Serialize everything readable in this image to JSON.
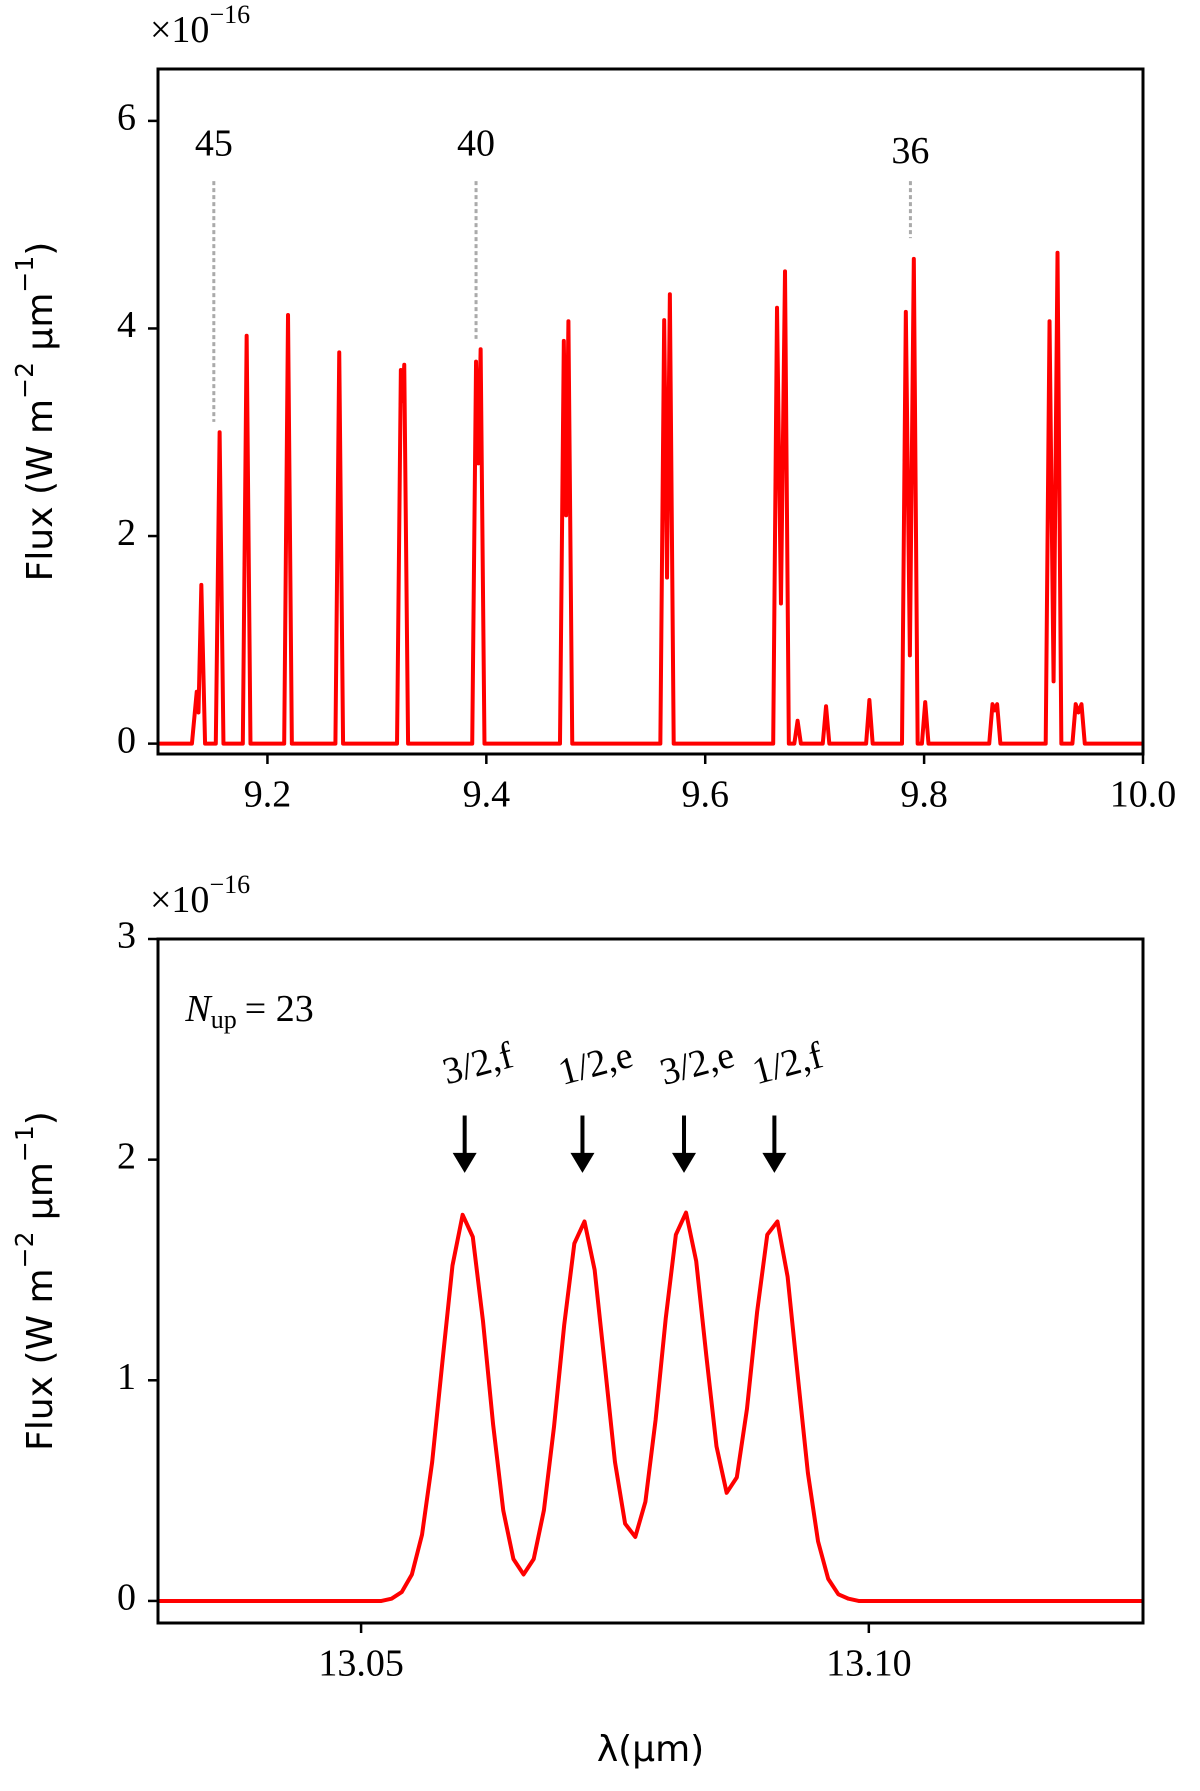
{
  "chart_data": [
    {
      "type": "line",
      "offset_text": [
        {
          "text": "×10"
        },
        {
          "text": "−16",
          "sup": true
        }
      ],
      "ylabel": [
        {
          "text": "Flux (W m"
        },
        {
          "text": "−2",
          "sup": true
        },
        {
          "text": " μm"
        },
        {
          "text": "−1",
          "sup": true
        },
        {
          "text": ")"
        }
      ],
      "xlim": [
        9.1,
        10.0
      ],
      "ylim": [
        -0.1,
        6.5
      ],
      "xticks": [
        9.2,
        9.4,
        9.6,
        9.8,
        {
          "value": 10.0,
          "label": "10.0"
        }
      ],
      "yticks": [
        0,
        2,
        4,
        6
      ],
      "color": "#ff0000",
      "x": [
        9.1,
        9.131,
        9.1354,
        9.137,
        9.1396,
        9.143,
        9.1528,
        9.1563,
        9.1598,
        9.1775,
        9.181,
        9.1845,
        9.2153,
        9.2188,
        9.2223,
        9.2621,
        9.2656,
        9.2691,
        9.3184,
        9.3219,
        9.3235,
        9.325,
        9.3285,
        9.3871,
        9.3906,
        9.3927,
        9.3948,
        9.3983,
        9.4673,
        9.4708,
        9.4729,
        9.475,
        9.4785,
        9.559,
        9.5625,
        9.5651,
        9.5677,
        9.5712,
        9.6621,
        9.6656,
        9.6692,
        9.6729,
        9.6764,
        9.6814,
        9.6844,
        9.6874,
        9.7074,
        9.7104,
        9.7134,
        9.747,
        9.75,
        9.753,
        9.7798,
        9.7833,
        9.787,
        9.7906,
        9.7941,
        9.798,
        9.801,
        9.804,
        9.8595,
        9.8625,
        9.8646,
        9.8667,
        9.8697,
        9.9111,
        9.9146,
        9.9183,
        9.9219,
        9.9254,
        9.9355,
        9.9385,
        9.941,
        9.9438,
        9.9468,
        10.0
      ],
      "values": [
        0,
        0,
        0.5,
        0.3,
        1.53,
        0,
        0,
        3.0,
        0,
        0,
        3.93,
        0,
        0,
        4.13,
        0,
        0,
        3.77,
        0,
        0,
        3.6,
        3.3,
        3.65,
        0,
        0,
        3.68,
        2.7,
        3.8,
        0,
        0,
        3.88,
        2.2,
        4.07,
        0,
        0,
        4.08,
        1.6,
        4.33,
        0,
        0,
        4.2,
        1.35,
        4.55,
        0,
        0,
        0.22,
        0,
        0,
        0.36,
        0,
        0,
        0.42,
        0,
        0,
        4.16,
        0.85,
        4.67,
        0,
        0,
        0.4,
        0,
        0,
        0.38,
        0.32,
        0.38,
        0,
        0,
        4.07,
        0.6,
        4.73,
        0,
        0,
        0.38,
        0.3,
        0.38,
        0,
        0
      ],
      "markers": [
        {
          "text": "45",
          "x": 9.151,
          "label_y": 5.75,
          "line_top": 5.42,
          "line_bottom": 3.1
        },
        {
          "text": "40",
          "x": 9.3906,
          "label_y": 5.75,
          "line_top": 5.42,
          "line_bottom": 3.9
        },
        {
          "text": "36",
          "x": 9.7875,
          "label_y": 5.68,
          "line_top": 5.42,
          "line_bottom": 4.87
        }
      ]
    },
    {
      "type": "line",
      "offset_text": [
        {
          "text": "×10"
        },
        {
          "text": "−16",
          "sup": true
        }
      ],
      "ylabel": [
        {
          "text": "Flux (W m"
        },
        {
          "text": "−2",
          "sup": true
        },
        {
          "text": " μm"
        },
        {
          "text": "−1",
          "sup": true
        },
        {
          "text": ")"
        }
      ],
      "xlabel": "λ(μm)",
      "xlim": [
        13.03,
        13.127
      ],
      "ylim": [
        -0.1,
        3
      ],
      "xticks": [
        13.05,
        {
          "value": 13.1,
          "label": "13.10"
        }
      ],
      "yticks": [
        0,
        1,
        2,
        3
      ],
      "color": "#ff0000",
      "x": [
        13.03,
        13.05,
        13.051,
        13.052,
        13.053,
        13.054,
        13.055,
        13.056,
        13.057,
        13.058,
        13.059,
        13.06,
        13.061,
        13.062,
        13.063,
        13.064,
        13.065,
        13.066,
        13.067,
        13.068,
        13.069,
        13.07,
        13.071,
        13.072,
        13.073,
        13.074,
        13.075,
        13.076,
        13.077,
        13.078,
        13.079,
        13.08,
        13.081,
        13.082,
        13.083,
        13.084,
        13.085,
        13.086,
        13.087,
        13.088,
        13.089,
        13.09,
        13.091,
        13.092,
        13.093,
        13.094,
        13.095,
        13.096,
        13.097,
        13.098,
        13.099,
        13.1,
        13.127
      ],
      "values": [
        0,
        0,
        0,
        0,
        0.01,
        0.04,
        0.12,
        0.3,
        0.63,
        1.08,
        1.52,
        1.75,
        1.65,
        1.27,
        0.8,
        0.41,
        0.19,
        0.12,
        0.19,
        0.41,
        0.79,
        1.25,
        1.62,
        1.72,
        1.5,
        1.07,
        0.63,
        0.35,
        0.29,
        0.45,
        0.82,
        1.28,
        1.66,
        1.76,
        1.54,
        1.11,
        0.7,
        0.49,
        0.56,
        0.87,
        1.31,
        1.66,
        1.72,
        1.47,
        1.02,
        0.58,
        0.27,
        0.1,
        0.03,
        0.01,
        0,
        0,
        0
      ],
      "note": {
        "text": "N",
        "subscript": "up",
        "suffix": "= 23",
        "x": 13.0327,
        "y": 2.67
      },
      "arrows": [
        {
          "text": "3/2,f",
          "x": 13.0602,
          "tail": 2.2,
          "head": 1.94,
          "label_y": 2.42
        },
        {
          "text": "1/2,e",
          "x": 13.0718,
          "tail": 2.2,
          "head": 1.94,
          "label_y": 2.42
        },
        {
          "text": "3/2,e",
          "x": 13.0818,
          "tail": 2.2,
          "head": 1.94,
          "label_y": 2.42
        },
        {
          "text": "1/2,f",
          "x": 13.0907,
          "tail": 2.2,
          "head": 1.94,
          "label_y": 2.42
        }
      ]
    }
  ]
}
